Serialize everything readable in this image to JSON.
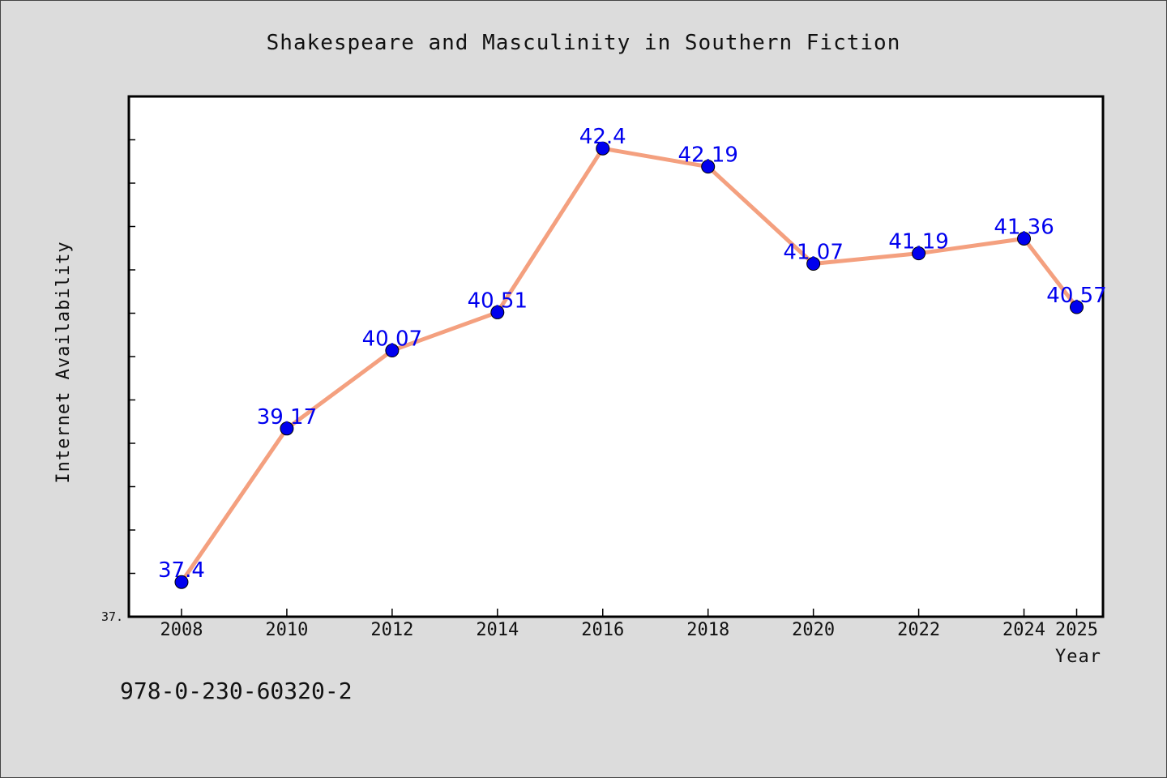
{
  "chart_data": {
    "type": "line",
    "title": "Shakespeare and Masculinity in Southern Fiction",
    "xlabel": "Year",
    "ylabel": "Internet Availability",
    "x": [
      "2008",
      "2010",
      "2012",
      "2014",
      "2016",
      "2018",
      "2020",
      "2022",
      "2024",
      "2025"
    ],
    "series": [
      {
        "values": [
          37.4,
          39.17,
          40.07,
          40.51,
          42.4,
          42.19,
          41.07,
          41.19,
          41.36,
          40.57
        ],
        "data_labels": [
          "37.4",
          "39.17",
          "40.07",
          "40.51",
          "42.4",
          "42.19",
          "41.07",
          "41.19",
          "41.36",
          "40.57"
        ]
      }
    ],
    "ylim": [
      37.0,
      43.0
    ],
    "y_tick_label": "37.",
    "grid": false,
    "legend": "none",
    "colors": {
      "line": "#f4a07f",
      "marker": "#0000ee",
      "label": "#0000ee",
      "plot_bg": "#ffffff",
      "page_bg": "#dcdcdc"
    }
  },
  "footer": {
    "code": "978-0-230-60320-2"
  }
}
